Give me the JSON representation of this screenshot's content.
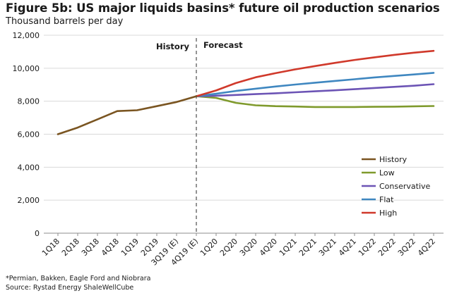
{
  "title": "Figure 5b: US major liquids basins* future oil production scenarios",
  "subtitle": "Thousand barrels per day",
  "footnote": "*Permian, Bakken, Eagle Ford and Niobrara",
  "source": "Source: Rystad Energy ShaleWellCube",
  "chart_data": {
    "type": "line",
    "title": "Figure 5b: US major liquids basins* future oil production scenarios",
    "ylabel": "Thousand barrels per day",
    "ylim": [
      0,
      12000
    ],
    "yticks": [
      "0",
      "2,000",
      "4,000",
      "6,000",
      "8,000",
      "10,000",
      "12,000"
    ],
    "grid": "horizontal",
    "legend_position": "right",
    "categories": [
      "1Q18",
      "2Q18",
      "3Q18",
      "4Q18",
      "1Q19",
      "2Q19",
      "3Q19 (E)",
      "4Q19 (E)",
      "1Q20",
      "2Q20",
      "3Q20",
      "4Q20",
      "1Q21",
      "2Q21",
      "3Q21",
      "4Q21",
      "1Q22",
      "2Q22",
      "3Q22",
      "4Q22"
    ],
    "annotations": {
      "history": "History",
      "forecast": "Forecast",
      "divider_after": "4Q19 (E)"
    },
    "series": [
      {
        "name": "History",
        "color": "#7a5521",
        "values": [
          6000,
          6400,
          6900,
          7400,
          7450,
          7700,
          7950,
          8300,
          null,
          null,
          null,
          null,
          null,
          null,
          null,
          null,
          null,
          null,
          null,
          null
        ]
      },
      {
        "name": "Low",
        "color": "#7f9a2c",
        "values": [
          null,
          null,
          null,
          null,
          null,
          null,
          null,
          8300,
          8200,
          7900,
          7750,
          7700,
          7680,
          7650,
          7650,
          7650,
          7660,
          7670,
          7690,
          7710
        ]
      },
      {
        "name": "Conservative",
        "color": "#6c54b5",
        "values": [
          null,
          null,
          null,
          null,
          null,
          null,
          null,
          8300,
          8330,
          8380,
          8430,
          8480,
          8540,
          8600,
          8660,
          8730,
          8800,
          8870,
          8940,
          9030
        ]
      },
      {
        "name": "Flat",
        "color": "#3f87c0",
        "values": [
          null,
          null,
          null,
          null,
          null,
          null,
          null,
          8300,
          8450,
          8620,
          8760,
          8890,
          9010,
          9120,
          9230,
          9330,
          9440,
          9530,
          9620,
          9720
        ]
      },
      {
        "name": "High",
        "color": "#d0392b",
        "values": [
          null,
          null,
          null,
          null,
          null,
          null,
          null,
          8300,
          8650,
          9100,
          9450,
          9700,
          9930,
          10130,
          10320,
          10500,
          10660,
          10810,
          10940,
          11050
        ]
      }
    ]
  }
}
